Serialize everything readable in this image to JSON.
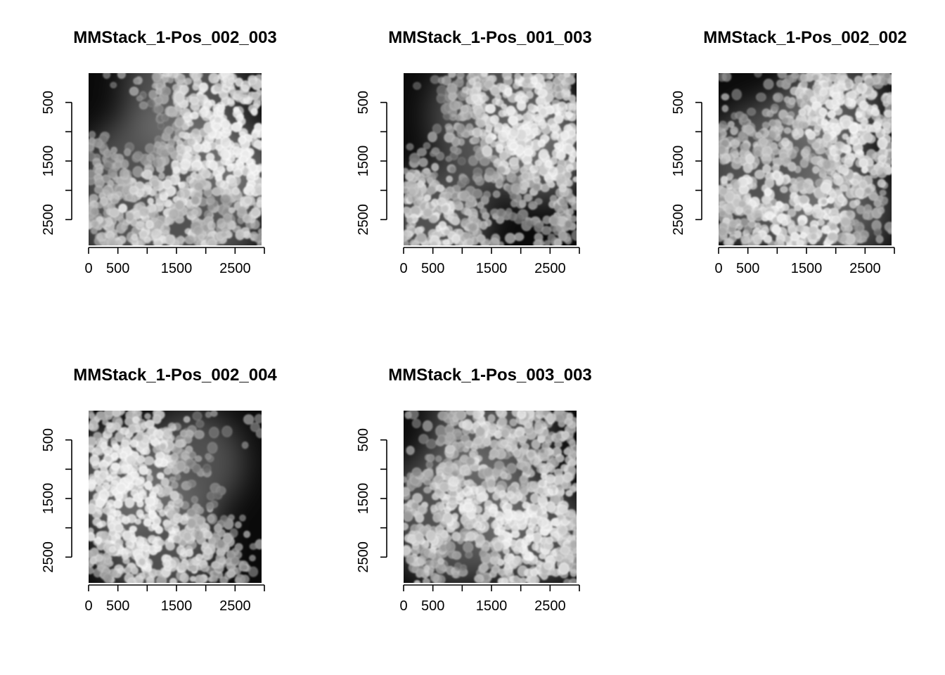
{
  "figure": {
    "panels": [
      {
        "title": "MMStack_1-Pos_002_003",
        "seed": 17,
        "bright": [
          [
            0.55,
            0.1,
            0.35
          ],
          [
            0.45,
            0.75,
            0.55
          ],
          [
            0.9,
            0.55,
            0.25
          ]
        ],
        "dark": [
          [
            0.15,
            0.2,
            0.25
          ],
          [
            0.35,
            0.35,
            0.15
          ],
          [
            0.75,
            0.75,
            0.12
          ]
        ]
      },
      {
        "title": "MMStack_1-Pos_001_003",
        "seed": 41,
        "bright": [
          [
            0.55,
            0.25,
            0.4
          ],
          [
            0.2,
            0.85,
            0.3
          ],
          [
            0.8,
            0.45,
            0.3
          ]
        ],
        "dark": [
          [
            0.1,
            0.25,
            0.2
          ],
          [
            0.6,
            0.75,
            0.18
          ],
          [
            0.35,
            0.55,
            0.12
          ]
        ]
      },
      {
        "title": "MMStack_1-Pos_002_002",
        "seed": 73,
        "bright": [
          [
            0.35,
            0.6,
            0.45
          ],
          [
            0.65,
            0.2,
            0.3
          ],
          [
            0.7,
            0.8,
            0.3
          ]
        ],
        "dark": [
          [
            0.25,
            0.15,
            0.2
          ],
          [
            0.55,
            0.55,
            0.15
          ],
          [
            0.9,
            0.85,
            0.15
          ]
        ]
      },
      {
        "title": "MMStack_1-Pos_002_004",
        "seed": 29,
        "bright": [
          [
            0.15,
            0.4,
            0.3
          ],
          [
            0.4,
            0.75,
            0.35
          ],
          [
            0.6,
            0.3,
            0.3
          ]
        ],
        "dark": [
          [
            0.7,
            0.15,
            0.18
          ],
          [
            0.9,
            0.5,
            0.2
          ],
          [
            0.55,
            0.45,
            0.12
          ]
        ]
      },
      {
        "title": "MMStack_1-Pos_003_003",
        "seed": 97,
        "bright": [
          [
            0.5,
            0.1,
            0.35
          ],
          [
            0.3,
            0.6,
            0.4
          ],
          [
            0.75,
            0.7,
            0.3
          ]
        ],
        "dark": [
          [
            0.1,
            0.2,
            0.2
          ],
          [
            0.6,
            0.35,
            0.15
          ],
          [
            0.4,
            0.85,
            0.12
          ]
        ]
      }
    ],
    "x_ticks": [
      0,
      500,
      1000,
      1500,
      2000,
      2500,
      3000
    ],
    "x_tick_labels": [
      "0",
      "500",
      "",
      "1500",
      "",
      "2500",
      ""
    ],
    "y_ticks": [
      500,
      1000,
      1500,
      2000,
      2500
    ],
    "y_tick_labels": [
      "500",
      "",
      "1500",
      "",
      "2500"
    ],
    "xlim": [
      0,
      3000
    ],
    "ylim": [
      3000,
      0
    ],
    "colors": {
      "background": "#ffffff",
      "axis": "#000000",
      "cell_tint": "#ffffff",
      "image_bg": "#0a0a0a"
    }
  }
}
